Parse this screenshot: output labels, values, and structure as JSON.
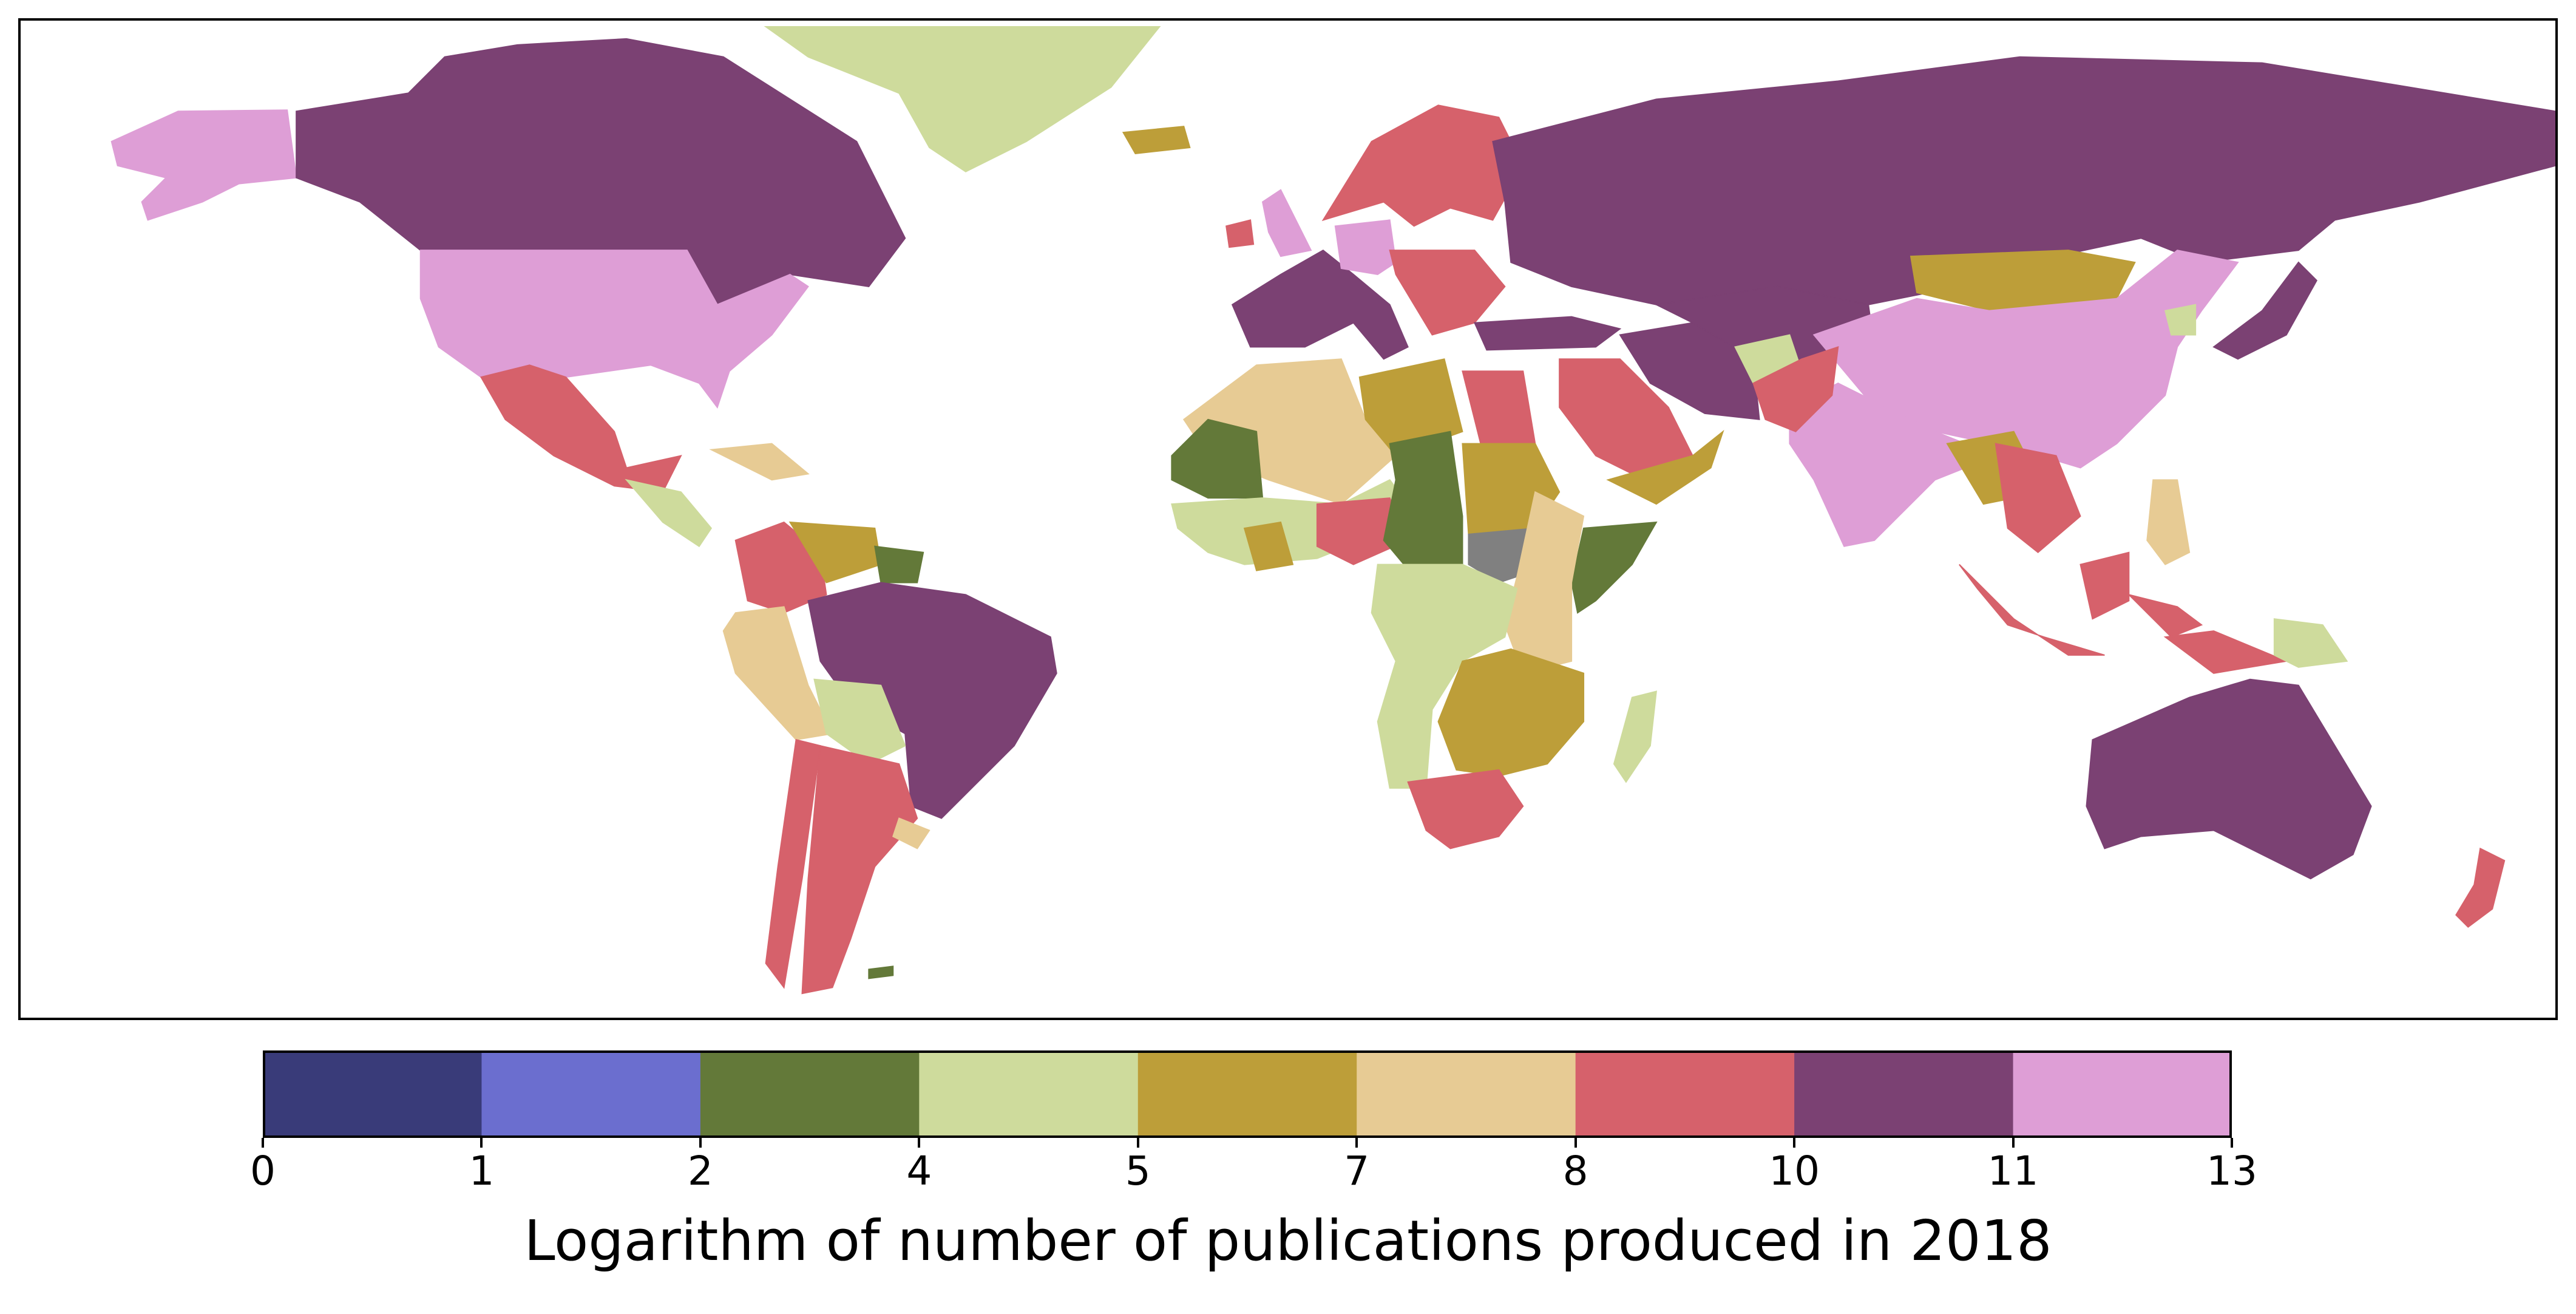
{
  "legend": {
    "title": "Logarithm of number of publications produced in 2018",
    "ticks": [
      "0",
      "1",
      "2",
      "4",
      "5",
      "7",
      "8",
      "10",
      "11",
      "13"
    ],
    "colors": [
      "#393b79",
      "#6b6ecf",
      "#637939",
      "#cedb9c",
      "#bd9e39",
      "#e7cb94",
      "#d6616b",
      "#7b4173",
      "#de9ed6"
    ],
    "no_data_color": "#808080"
  },
  "regions": [
    {
      "name": "alaska",
      "color": "#de9ed6"
    },
    {
      "name": "canada",
      "color": "#7b4173"
    },
    {
      "name": "greenland",
      "color": "#cedb9c"
    },
    {
      "name": "iceland",
      "color": "#bd9e39"
    },
    {
      "name": "usa",
      "color": "#de9ed6"
    },
    {
      "name": "mexico",
      "color": "#d6616b"
    },
    {
      "name": "central-america",
      "color": "#cedb9c"
    },
    {
      "name": "caribbean",
      "color": "#e7cb94"
    },
    {
      "name": "colombia",
      "color": "#d6616b"
    },
    {
      "name": "venezuela",
      "color": "#bd9e39"
    },
    {
      "name": "guyanas",
      "color": "#637939"
    },
    {
      "name": "peru",
      "color": "#e7cb94"
    },
    {
      "name": "brazil",
      "color": "#7b4173"
    },
    {
      "name": "bolivia",
      "color": "#cedb9c"
    },
    {
      "name": "chile",
      "color": "#d6616b"
    },
    {
      "name": "argentina",
      "color": "#d6616b"
    },
    {
      "name": "uruguay",
      "color": "#e7cb94"
    },
    {
      "name": "falklands",
      "color": "#637939"
    },
    {
      "name": "uk",
      "color": "#de9ed6"
    },
    {
      "name": "ireland",
      "color": "#d6616b"
    },
    {
      "name": "scandinavia",
      "color": "#d6616b"
    },
    {
      "name": "western-europe",
      "color": "#7b4173"
    },
    {
      "name": "germany",
      "color": "#de9ed6"
    },
    {
      "name": "eastern-europe",
      "color": "#d6616b"
    },
    {
      "name": "russia",
      "color": "#7b4173"
    },
    {
      "name": "turkey",
      "color": "#7b4173"
    },
    {
      "name": "iran",
      "color": "#7b4173"
    },
    {
      "name": "kazakhstan",
      "color": "#7b4173"
    },
    {
      "name": "mongolia",
      "color": "#bd9e39"
    },
    {
      "name": "china",
      "color": "#de9ed6"
    },
    {
      "name": "india",
      "color": "#de9ed6"
    },
    {
      "name": "japan",
      "color": "#7b4173"
    },
    {
      "name": "korea",
      "color": "#cedb9c"
    },
    {
      "name": "afghanistan",
      "color": "#cedb9c"
    },
    {
      "name": "pakistan",
      "color": "#d6616b"
    },
    {
      "name": "saudi-arabia",
      "color": "#d6616b"
    },
    {
      "name": "yemen-oman",
      "color": "#bd9e39"
    },
    {
      "name": "southeast-asia",
      "color": "#bd9e39"
    },
    {
      "name": "thailand-vietnam",
      "color": "#d6616b"
    },
    {
      "name": "indonesia",
      "color": "#d6616b"
    },
    {
      "name": "philippines",
      "color": "#e7cb94"
    },
    {
      "name": "png",
      "color": "#cedb9c"
    },
    {
      "name": "australia",
      "color": "#7b4173"
    },
    {
      "name": "new-zealand",
      "color": "#d6616b"
    },
    {
      "name": "algeria-mali",
      "color": "#e7cb94"
    },
    {
      "name": "mauritania",
      "color": "#637939"
    },
    {
      "name": "west-africa",
      "color": "#cedb9c"
    },
    {
      "name": "ghana",
      "color": "#bd9e39"
    },
    {
      "name": "nigeria",
      "color": "#d6616b"
    },
    {
      "name": "libya",
      "color": "#bd9e39"
    },
    {
      "name": "egypt",
      "color": "#d6616b"
    },
    {
      "name": "chad-car",
      "color": "#637939"
    },
    {
      "name": "sudan",
      "color": "#bd9e39"
    },
    {
      "name": "south-sudan",
      "color": "#808080"
    },
    {
      "name": "somalia",
      "color": "#637939"
    },
    {
      "name": "east-africa",
      "color": "#e7cb94"
    },
    {
      "name": "congo",
      "color": "#cedb9c"
    },
    {
      "name": "southern-africa",
      "color": "#bd9e39"
    },
    {
      "name": "south-africa",
      "color": "#d6616b"
    },
    {
      "name": "madagascar",
      "color": "#cedb9c"
    }
  ]
}
